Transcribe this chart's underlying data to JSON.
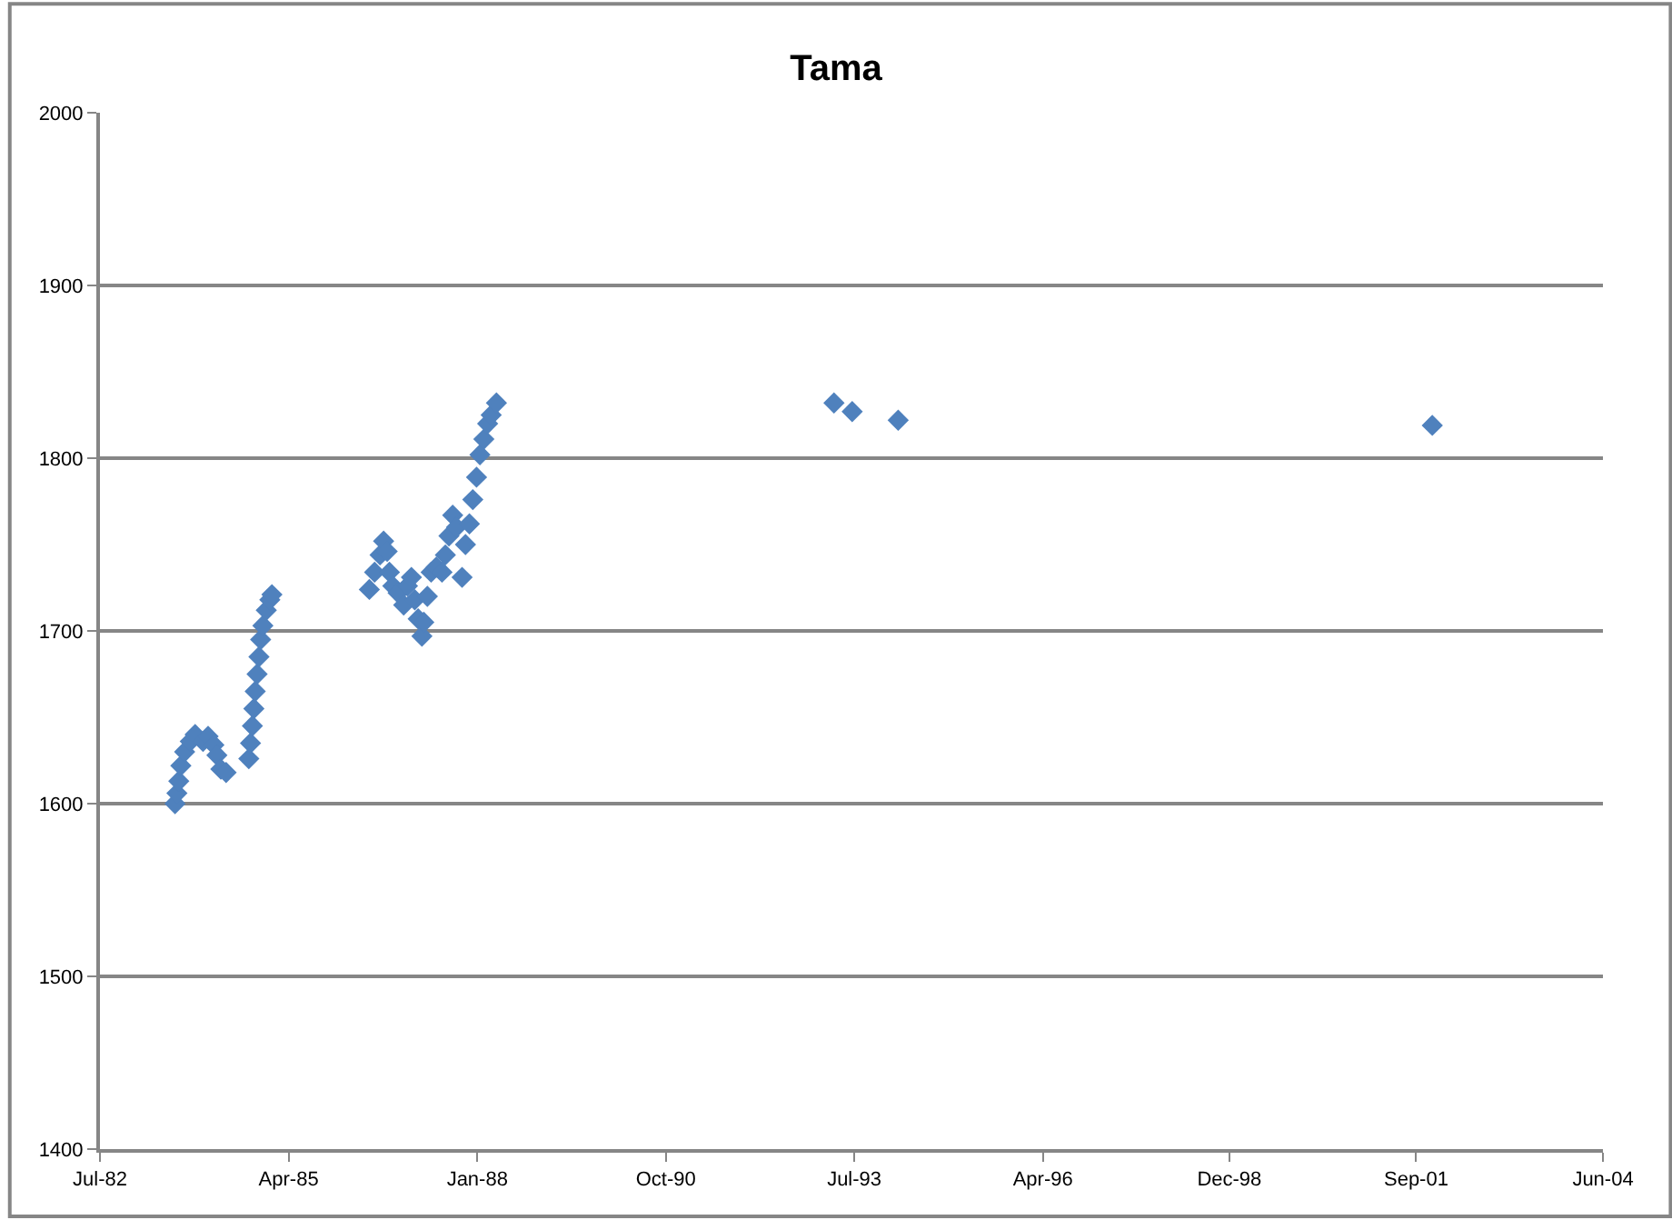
{
  "chart_data": {
    "type": "scatter",
    "title": "Tama",
    "x": [
      "1983-08-05",
      "1983-08-15",
      "1983-08-25",
      "1983-09-05",
      "1983-09-25",
      "1983-10-25",
      "1983-11-20",
      "1984-01-01",
      "1984-01-28",
      "1984-02-28",
      "1984-03-15",
      "1984-04-05",
      "1984-05-03",
      "1984-09-01",
      "1984-09-10",
      "1984-09-20",
      "1984-09-28",
      "1984-10-05",
      "1984-10-15",
      "1984-10-25",
      "1984-11-03",
      "1984-11-15",
      "1984-12-03",
      "1984-12-22",
      "1985-01-02",
      "1986-06-05",
      "1986-07-03",
      "1986-08-01",
      "1986-08-20",
      "1986-09-08",
      "1986-09-20",
      "1986-10-08",
      "1986-11-05",
      "1986-12-05",
      "1986-12-25",
      "1987-01-15",
      "1987-02-02",
      "1987-02-20",
      "1987-03-12",
      "1987-03-22",
      "1987-04-10",
      "1987-04-30",
      "1987-05-28",
      "1987-06-27",
      "1987-07-15",
      "1987-08-03",
      "1987-08-23",
      "1987-09-12",
      "1987-10-12",
      "1987-10-30",
      "1987-11-20",
      "1987-12-08",
      "1987-12-28",
      "1988-01-15",
      "1988-02-05",
      "1988-02-25",
      "1988-03-15",
      "1988-04-12",
      "1993-03-15",
      "1993-06-20",
      "1994-02-20",
      "2001-12-05"
    ],
    "series": [
      {
        "color": "#4f81bd",
        "values": [
          1600,
          1606,
          1613,
          1622,
          1630,
          1636,
          1640,
          1636,
          1639,
          1634,
          1628,
          1620,
          1618,
          1626,
          1635,
          1645,
          1655,
          1665,
          1675,
          1685,
          1695,
          1703,
          1712,
          1718,
          1721,
          1724,
          1734,
          1744,
          1752,
          1746,
          1734,
          1726,
          1722,
          1715,
          1726,
          1731,
          1718,
          1707,
          1697,
          1705,
          1720,
          1734,
          1737,
          1734,
          1744,
          1755,
          1767,
          1760,
          1731,
          1750,
          1762,
          1776,
          1789,
          1802,
          1811,
          1820,
          1825,
          1832,
          1832,
          1827,
          1822,
          1819
        ]
      }
    ],
    "xlim": [
      "1982-07-01",
      "2004-06-01"
    ],
    "xticks": [
      {
        "value": "1982-07-01",
        "label": "Jul-82"
      },
      {
        "value": "1985-04-01",
        "label": "Apr-85"
      },
      {
        "value": "1988-01-01",
        "label": "Jan-88"
      },
      {
        "value": "1990-10-01",
        "label": "Oct-90"
      },
      {
        "value": "1993-07-01",
        "label": "Jul-93"
      },
      {
        "value": "1996-04-01",
        "label": "Apr-96"
      },
      {
        "value": "1998-12-20",
        "label": "Dec-98"
      },
      {
        "value": "2001-09-10",
        "label": "Sep-01"
      },
      {
        "value": "2004-06-01",
        "label": "Jun-04"
      }
    ],
    "ylim": [
      1400,
      2000
    ],
    "yticks": [
      1400,
      1500,
      1600,
      1700,
      1800,
      1900,
      2000
    ],
    "grid": "y",
    "marker": "diamond"
  }
}
